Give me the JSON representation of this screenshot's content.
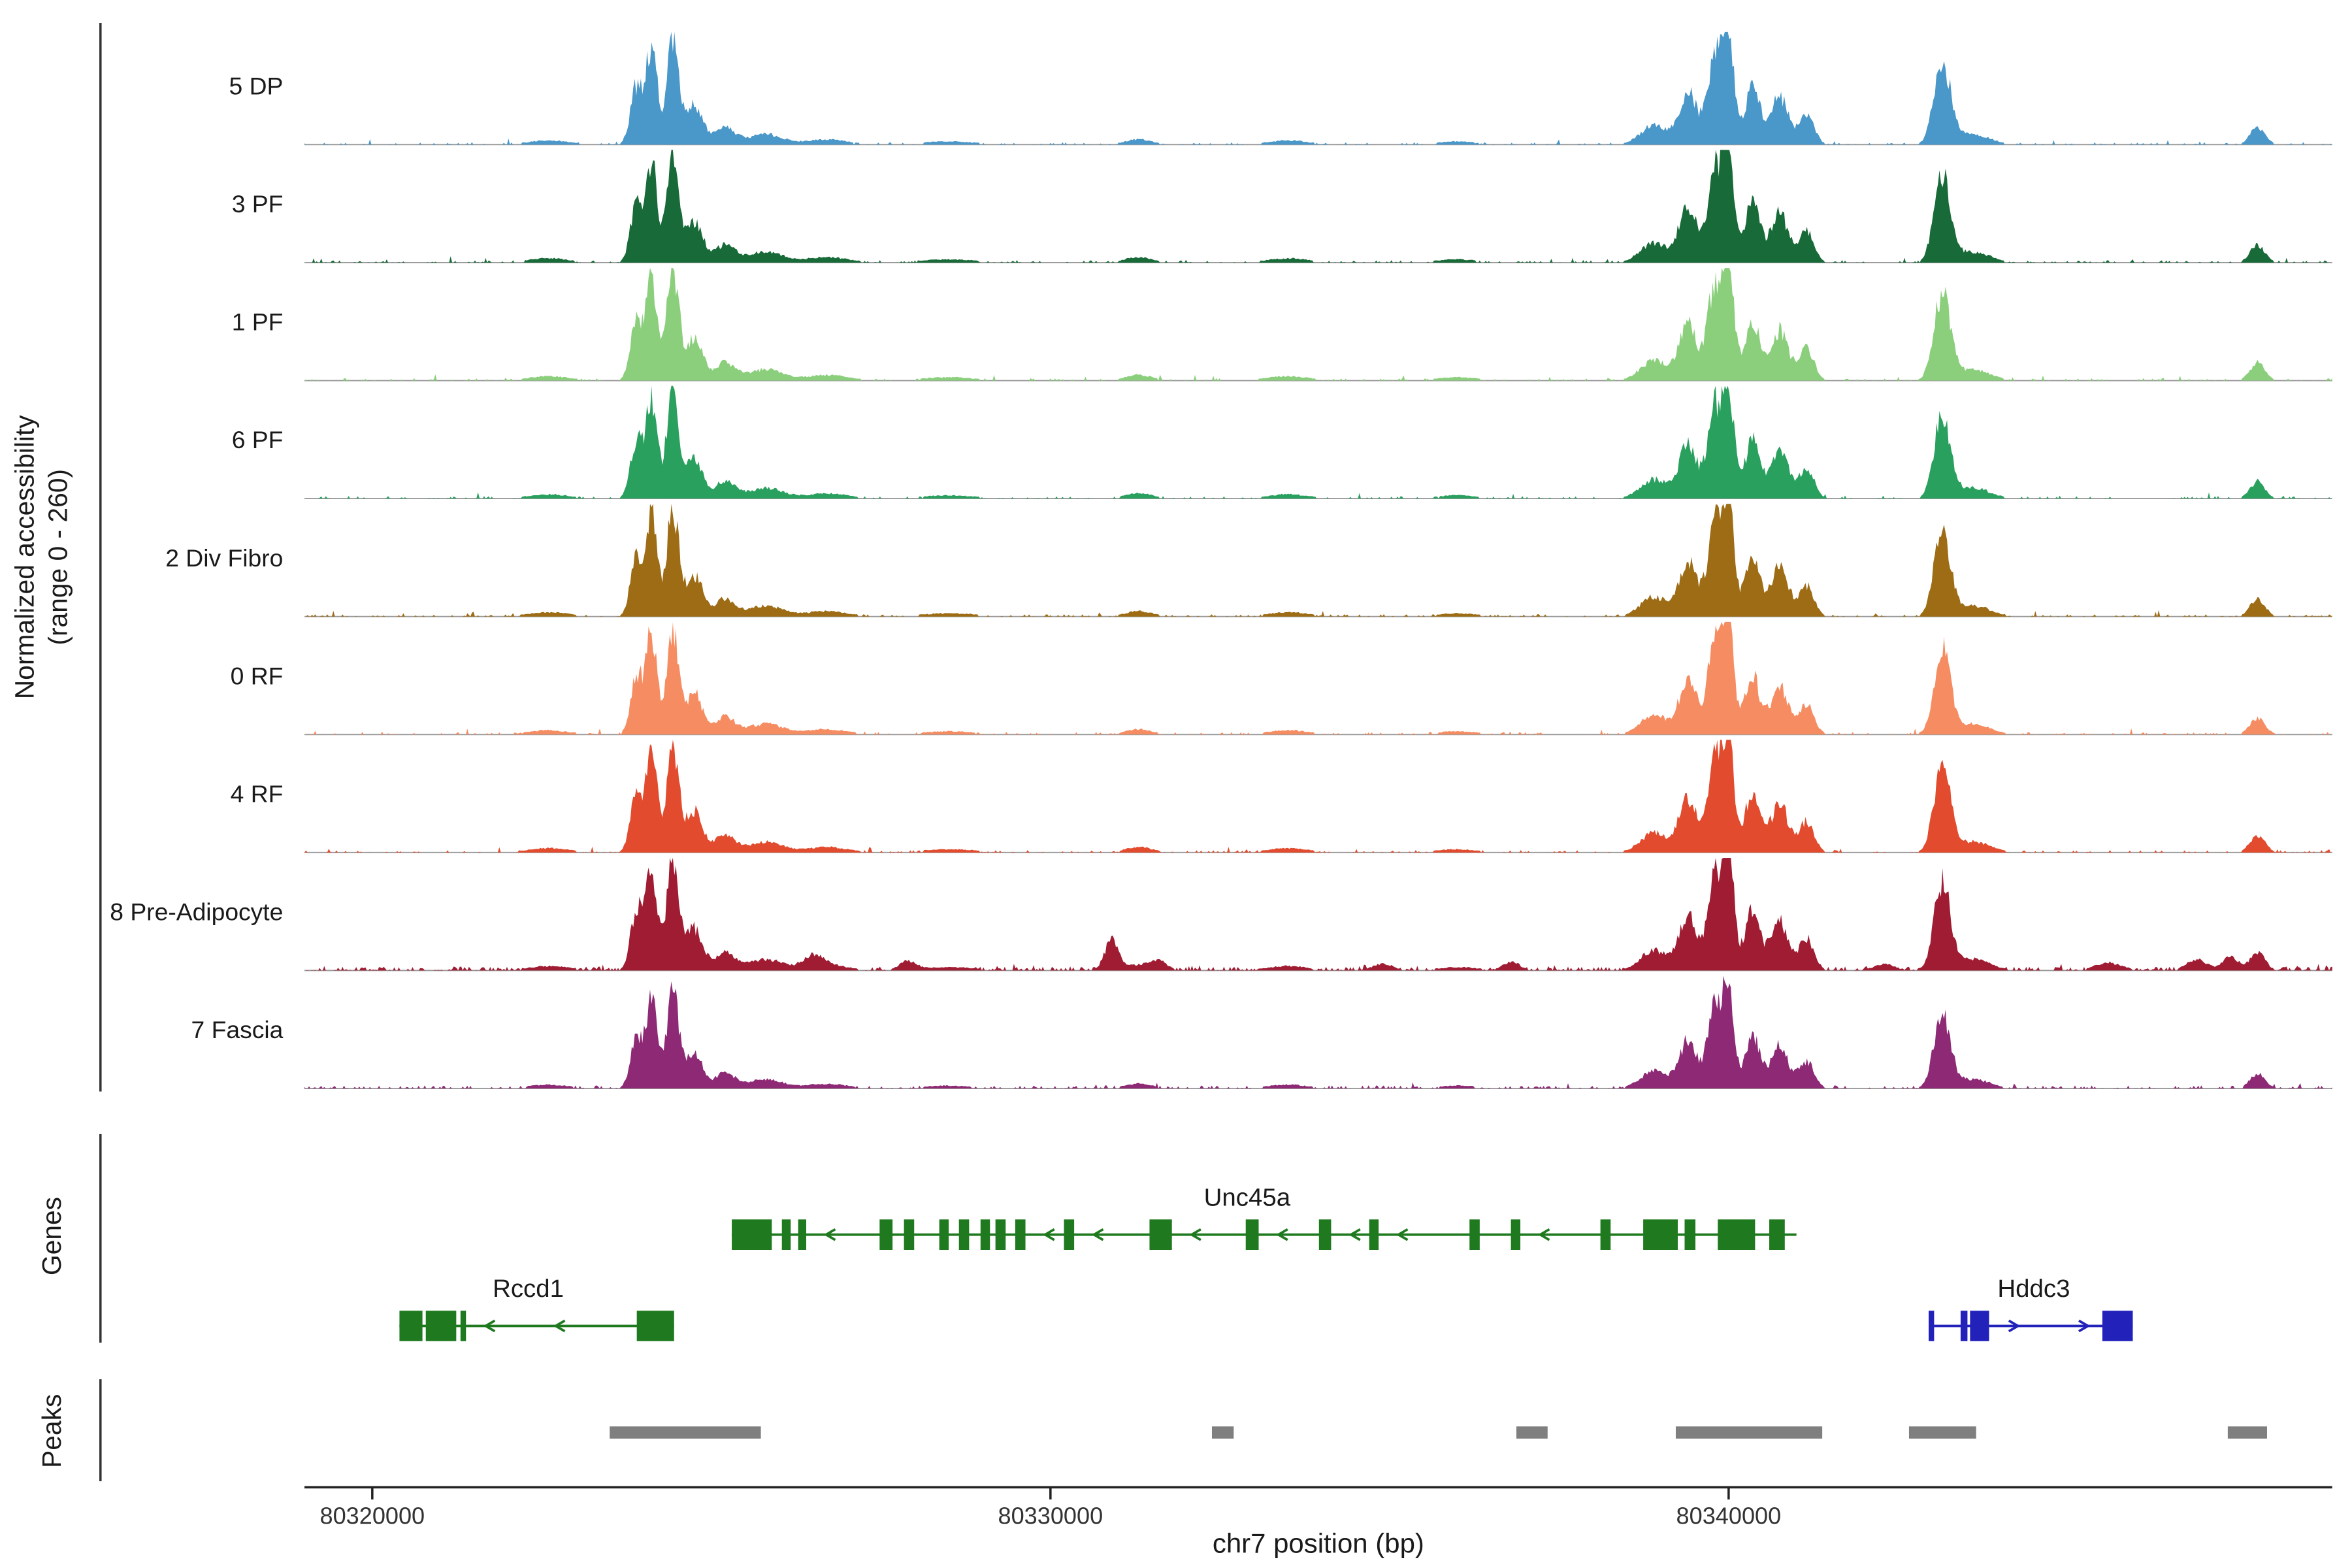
{
  "figure": {
    "y_axis_label_line1": "Normalized accessibility",
    "y_axis_label_line2": "(range 0 - 260)",
    "genes_section_label": "Genes",
    "peaks_section_label": "Peaks",
    "x_axis_title": "chr7 position (bp)"
  },
  "chart_data": {
    "type": "area",
    "title": "",
    "xlabel": "chr7 position (bp)",
    "ylabel": "Normalized accessibility (range 0 - 260)",
    "chromosome": "chr7",
    "x_range_bp": [
      80319000,
      80348900
    ],
    "x_ticks": [
      80320000,
      80330000,
      80340000
    ],
    "x_tick_labels": [
      "80320000",
      "80330000",
      "80340000"
    ],
    "y_range_per_track": [
      0,
      260
    ],
    "tracks": [
      {
        "label": "5 DP",
        "color": "#4a97c9",
        "scale": 0.95,
        "noise": 1.0
      },
      {
        "label": "3 PF",
        "color": "#186a38",
        "scale": 0.98,
        "noise": 1.0
      },
      {
        "label": "1 PF",
        "color": "#8bcf7d",
        "scale": 1.0,
        "noise": 1.0
      },
      {
        "label": "6 PF",
        "color": "#2aa05f",
        "scale": 0.96,
        "noise": 1.0
      },
      {
        "label": "2 Div Fibro",
        "color": "#9d6c15",
        "scale": 0.98,
        "noise": 1.0
      },
      {
        "label": "0 RF",
        "color": "#f68d62",
        "scale": 0.96,
        "noise": 1.0
      },
      {
        "label": "4 RF",
        "color": "#e24b2e",
        "scale": 0.98,
        "noise": 1.0
      },
      {
        "label": "8 Pre-Adipocyte",
        "color": "#a01c33",
        "scale": 1.0,
        "noise": 2.2,
        "extra_peaks": [
          {
            "c": 80326500,
            "s": 150,
            "h": 0.1
          },
          {
            "c": 80327900,
            "s": 120,
            "h": 0.08
          },
          {
            "c": 80330900,
            "s": 100,
            "h": 0.27
          },
          {
            "c": 80331600,
            "s": 120,
            "h": 0.08
          },
          {
            "c": 80334900,
            "s": 150,
            "h": 0.06
          },
          {
            "c": 80336800,
            "s": 120,
            "h": 0.08
          },
          {
            "c": 80342300,
            "s": 150,
            "h": 0.06
          },
          {
            "c": 80345600,
            "s": 200,
            "h": 0.07
          },
          {
            "c": 80346900,
            "s": 150,
            "h": 0.1
          },
          {
            "c": 80347400,
            "s": 120,
            "h": 0.12
          }
        ]
      },
      {
        "label": "7 Fascia",
        "color": "#8e2a75",
        "scale": 0.85,
        "noise": 1.3
      }
    ],
    "shared_peaks_bp": [
      {
        "c": 80322600,
        "s": 300,
        "h": 0.04
      },
      {
        "c": 80323900,
        "s": 90,
        "h": 0.55
      },
      {
        "c": 80324120,
        "s": 80,
        "h": 0.92
      },
      {
        "c": 80324430,
        "s": 90,
        "h": 1.0
      },
      {
        "c": 80324750,
        "s": 120,
        "h": 0.38
      },
      {
        "c": 80325200,
        "s": 150,
        "h": 0.16
      },
      {
        "c": 80325800,
        "s": 250,
        "h": 0.1
      },
      {
        "c": 80326700,
        "s": 300,
        "h": 0.05
      },
      {
        "c": 80328500,
        "s": 400,
        "h": 0.03
      },
      {
        "c": 80331300,
        "s": 200,
        "h": 0.05
      },
      {
        "c": 80333500,
        "s": 300,
        "h": 0.04
      },
      {
        "c": 80336000,
        "s": 300,
        "h": 0.03
      },
      {
        "c": 80338900,
        "s": 200,
        "h": 0.18
      },
      {
        "c": 80339400,
        "s": 130,
        "h": 0.5
      },
      {
        "c": 80339800,
        "s": 110,
        "h": 0.85
      },
      {
        "c": 80340000,
        "s": 80,
        "h": 1.0
      },
      {
        "c": 80340350,
        "s": 110,
        "h": 0.55
      },
      {
        "c": 80340750,
        "s": 130,
        "h": 0.45
      },
      {
        "c": 80341150,
        "s": 110,
        "h": 0.28
      },
      {
        "c": 80343150,
        "s": 120,
        "h": 0.78
      },
      {
        "c": 80343600,
        "s": 250,
        "h": 0.1
      },
      {
        "c": 80347800,
        "s": 110,
        "h": 0.16
      }
    ],
    "genes": [
      {
        "name": "Rccd1",
        "color": "#1f7a1f",
        "strand": "-",
        "start": 80320400,
        "end": 80324450,
        "row": 1,
        "label_bp": 80322300,
        "exons": [
          [
            80320400,
            80320740
          ],
          [
            80320790,
            80321240
          ],
          [
            80321300,
            80321380
          ],
          [
            80323900,
            80324450
          ]
        ]
      },
      {
        "name": "Unc45a",
        "color": "#1f7a1f",
        "strand": "-",
        "start": 80325300,
        "end": 80341000,
        "row": 0,
        "label_bp": 80332900,
        "exons": [
          [
            80325300,
            80325890
          ],
          [
            80326040,
            80326170
          ],
          [
            80326280,
            80326400
          ],
          [
            80327480,
            80327670
          ],
          [
            80327840,
            80327990
          ],
          [
            80328360,
            80328500
          ],
          [
            80328650,
            80328800
          ],
          [
            80328970,
            80329110
          ],
          [
            80329190,
            80329340
          ],
          [
            80329480,
            80329630
          ],
          [
            80330200,
            80330350
          ],
          [
            80331460,
            80331790
          ],
          [
            80332880,
            80333070
          ],
          [
            80333960,
            80334140
          ],
          [
            80334700,
            80334840
          ],
          [
            80336180,
            80336330
          ],
          [
            80336790,
            80336930
          ],
          [
            80338110,
            80338260
          ],
          [
            80338740,
            80339250
          ],
          [
            80339350,
            80339510
          ],
          [
            80339840,
            80340390
          ],
          [
            80340600,
            80340830
          ]
        ]
      },
      {
        "name": "Hddc3",
        "color": "#2222bb",
        "strand": "+",
        "start": 80342950,
        "end": 80345960,
        "row": 1,
        "label_bp": 80344500,
        "exons": [
          [
            80342950,
            80343030
          ],
          [
            80343420,
            80343520
          ],
          [
            80343560,
            80343840
          ],
          [
            80345510,
            80345960
          ]
        ]
      }
    ],
    "peak_regions_bp": [
      [
        80323500,
        80325730
      ],
      [
        80332380,
        80332700
      ],
      [
        80336870,
        80337330
      ],
      [
        80339220,
        80341380
      ],
      [
        80342660,
        80343650
      ],
      [
        80347360,
        80347940
      ]
    ],
    "peak_bar_color": "#7f7f7f"
  }
}
